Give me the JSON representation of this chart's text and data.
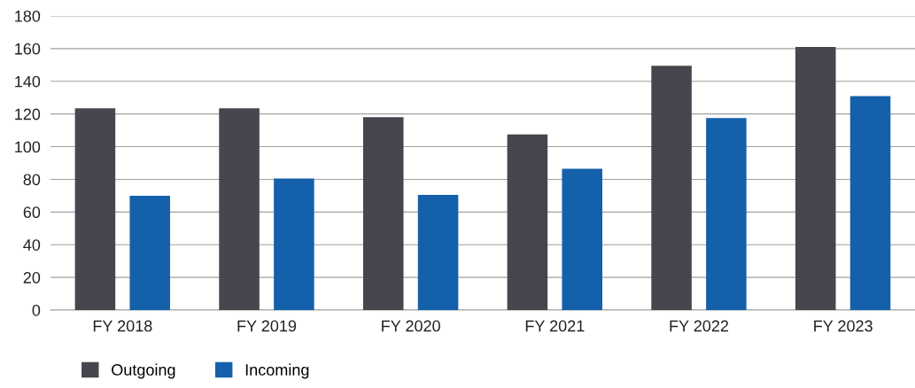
{
  "chart_data": {
    "type": "bar",
    "categories": [
      "FY 2018",
      "FY 2019",
      "FY 2020",
      "FY 2021",
      "FY 2022",
      "FY 2023"
    ],
    "series": [
      {
        "name": "Outgoing",
        "color": "#46464e",
        "values": [
          123.5,
          123.5,
          118,
          107.5,
          149.5,
          161
        ]
      },
      {
        "name": "Incoming",
        "color": "#1560ab",
        "values": [
          70,
          80.5,
          70.5,
          86.5,
          117.5,
          131
        ]
      }
    ],
    "ylim": [
      0,
      180
    ],
    "yticks": [
      0,
      20,
      40,
      60,
      80,
      100,
      120,
      140,
      160,
      180
    ],
    "grid": "y",
    "legend": "bottom left"
  }
}
